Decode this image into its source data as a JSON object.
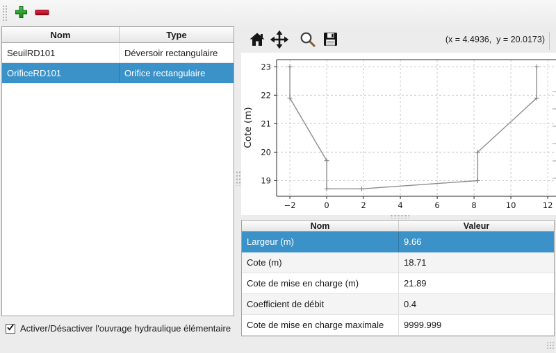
{
  "window": {
    "background": "#ececec",
    "selection_color": "#3a92c8"
  },
  "main_toolbar": {
    "add_icon": "plus",
    "remove_icon": "minus"
  },
  "structures_table": {
    "columns": [
      "Nom",
      "Type"
    ],
    "rows": [
      {
        "nom": "SeuilRD101",
        "type": "Déversoir rectangulaire",
        "selected": false
      },
      {
        "nom": "OrificeRD101",
        "type": "Orifice rectangulaire",
        "selected": true
      }
    ]
  },
  "activation_checkbox": {
    "checked": true,
    "label": "Activer/Désactiver l'ouvrage hydraulique élémentaire"
  },
  "plot_toolbar": {
    "buttons": [
      "home",
      "pan",
      "zoom",
      "save"
    ],
    "coordinates": "(x = 4.4936,  y = 20.0173)"
  },
  "chart_data": {
    "type": "line",
    "title": "",
    "xlabel": "",
    "ylabel": "Cote (m)",
    "x": [
      -2,
      -2,
      0,
      0,
      1.9,
      8.2,
      8.2,
      11.4,
      11.4
    ],
    "y": [
      23,
      21.9,
      19.7,
      18.71,
      18.71,
      19.0,
      20.0,
      21.9,
      23
    ],
    "xticks": [
      -2,
      0,
      2,
      4,
      6,
      8,
      10,
      12
    ],
    "xtick_labels": [
      "−2",
      "0",
      "2",
      "4",
      "6",
      "8",
      "10",
      "12"
    ],
    "yticks": [
      19,
      20,
      21,
      22,
      23
    ],
    "ytick_labels": [
      "19",
      "20",
      "21",
      "22",
      "23"
    ],
    "xlim": [
      -2.72,
      12.45
    ],
    "ylim": [
      18.45,
      23.25
    ],
    "grid": true,
    "grid_style": "dashed",
    "line_color": "#8c8c8c",
    "marker": "+",
    "legend_position": "none"
  },
  "properties_table": {
    "columns": [
      "Nom",
      "Valeur"
    ],
    "rows": [
      {
        "nom": "Largeur (m)",
        "valeur": "9.66",
        "selected": true
      },
      {
        "nom": "Cote (m)",
        "valeur": "18.71",
        "selected": false
      },
      {
        "nom": "Cote de mise en charge (m)",
        "valeur": "21.89",
        "selected": false
      },
      {
        "nom": "Coefficient de débit",
        "valeur": "0.4",
        "selected": false
      },
      {
        "nom": "Cote de mise en charge maximale",
        "valeur": "9999.999",
        "selected": false
      }
    ]
  }
}
